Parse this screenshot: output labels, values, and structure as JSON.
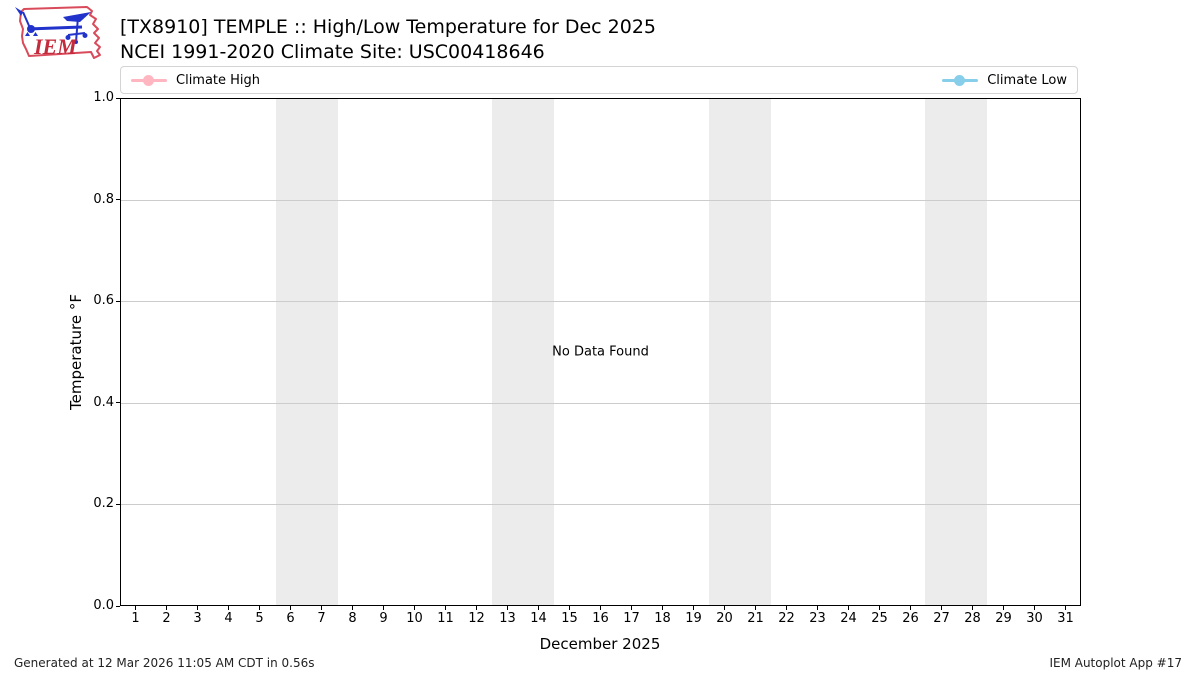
{
  "header": {
    "title": "[TX8910] TEMPLE :: High/Low Temperature for Dec 2025",
    "subtitle": "NCEI 1991-2020 Climate Site: USC00418646",
    "logo_text": "IEM"
  },
  "legend": {
    "items": [
      {
        "label": "Climate High",
        "color": "#ffb6c1"
      },
      {
        "label": "Climate Low",
        "color": "#87ceeb"
      }
    ]
  },
  "chart_data": {
    "type": "line",
    "title": "[TX8910] TEMPLE :: High/Low Temperature for Dec 2025",
    "subtitle": "NCEI 1991-2020 Climate Site: USC00418646",
    "xlabel": "December 2025",
    "ylabel": "Temperature °F",
    "xlim": [
      0.5,
      31.5
    ],
    "ylim": [
      0.0,
      1.0
    ],
    "x_ticks": [
      1,
      2,
      3,
      4,
      5,
      6,
      7,
      8,
      9,
      10,
      11,
      12,
      13,
      14,
      15,
      16,
      17,
      18,
      19,
      20,
      21,
      22,
      23,
      24,
      25,
      26,
      27,
      28,
      29,
      30,
      31
    ],
    "y_ticks": [
      "0.0",
      "0.2",
      "0.4",
      "0.6",
      "0.8",
      "1.0"
    ],
    "grid": "horizontal",
    "gridline_color": "#cccccc",
    "weekend_band_color": "#ececec",
    "weekend_bands": [
      [
        5.5,
        7.5
      ],
      [
        12.5,
        14.5
      ],
      [
        19.5,
        21.5
      ],
      [
        26.5,
        28.5
      ]
    ],
    "series": [
      {
        "name": "Climate High",
        "color": "#ffb6c1",
        "x": [],
        "values": []
      },
      {
        "name": "Climate Low",
        "color": "#87ceeb",
        "x": [],
        "values": []
      }
    ],
    "no_data_text": "No Data Found"
  },
  "footer": {
    "left": "Generated at 12 Mar 2026 11:05 AM CDT in 0.56s",
    "right": "IEM Autoplot App #17"
  }
}
